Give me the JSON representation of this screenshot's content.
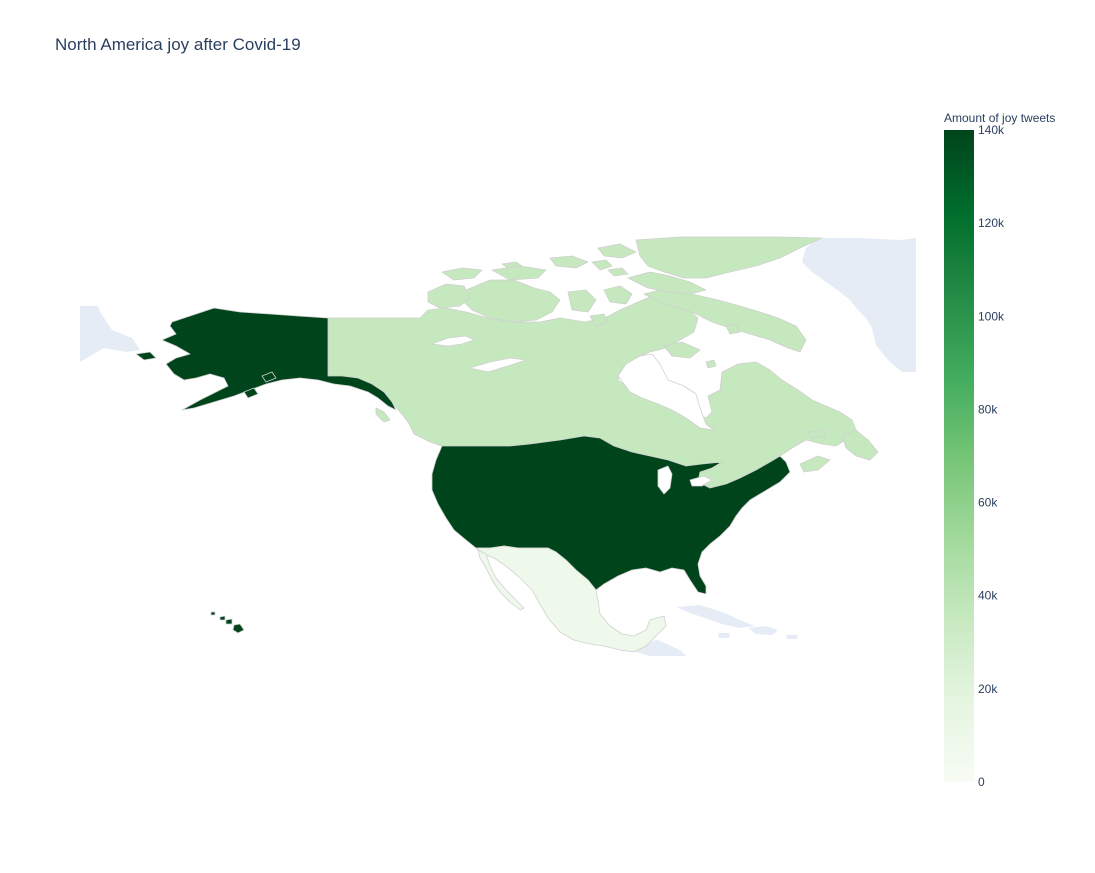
{
  "chart_data": {
    "type": "choropleth",
    "title": "North America joy after Covid-19",
    "colorbar": {
      "title": "Amount of joy tweets",
      "range": [
        0,
        140000
      ],
      "tickvals": [
        0,
        20000,
        40000,
        60000,
        80000,
        100000,
        120000,
        140000
      ],
      "ticktext": [
        "0",
        "20k",
        "40k",
        "60k",
        "80k",
        "100k",
        "120k",
        "140k"
      ],
      "colorscale": [
        [
          0.0,
          "#f7fcf5"
        ],
        [
          0.125,
          "#e5f5e0"
        ],
        [
          0.25,
          "#c7e9c0"
        ],
        [
          0.375,
          "#a1d99b"
        ],
        [
          0.5,
          "#74c476"
        ],
        [
          0.625,
          "#41ab5d"
        ],
        [
          0.75,
          "#238b45"
        ],
        [
          0.875,
          "#006d2c"
        ],
        [
          1.0,
          "#00441b"
        ]
      ]
    },
    "regions": [
      {
        "name": "United States",
        "value": 140000
      },
      {
        "name": "Canada",
        "value": 36000
      },
      {
        "name": "Mexico",
        "value": 8000
      }
    ],
    "background_land_color": "#e5ecf6"
  }
}
